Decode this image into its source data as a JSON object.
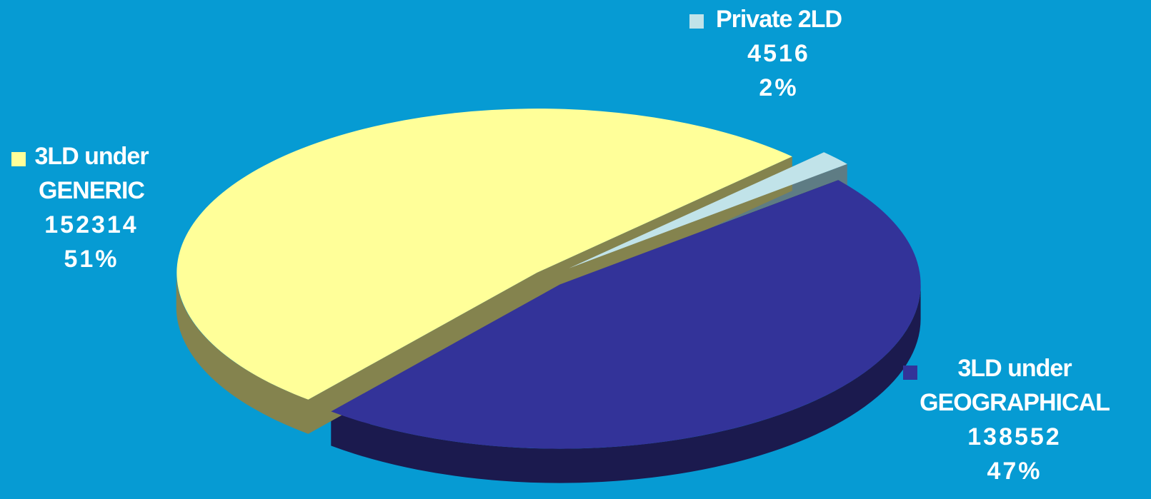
{
  "chart_data": {
    "type": "pie",
    "background": "#069BD3",
    "exploded": true,
    "three_d": true,
    "slices": [
      {
        "label_lines": [
          "Private 2LD"
        ],
        "value": 4516,
        "value_text": "4516",
        "percent_text": "2%",
        "color": "#C1E3E9",
        "side_color": "#5E7C84"
      },
      {
        "label_lines": [
          "3LD under",
          "GEOGRAPHICAL"
        ],
        "value": 138552,
        "value_text": "138552",
        "percent_text": "47%",
        "color": "#333399",
        "side_color": "#1B1A4E"
      },
      {
        "label_lines": [
          "3LD under",
          "GENERIC"
        ],
        "value": 152314,
        "value_text": "152314",
        "percent_text": "51%",
        "color": "#FFFF99",
        "side_color": "#84834E"
      }
    ]
  }
}
